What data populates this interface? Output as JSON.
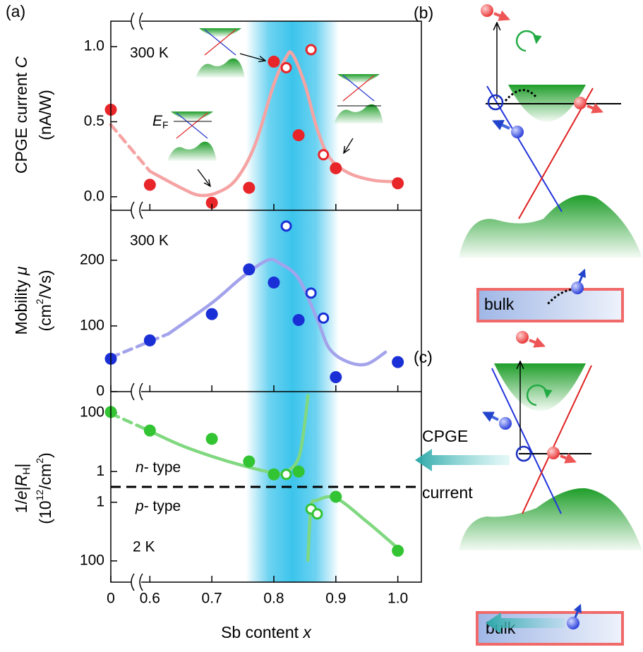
{
  "chart_data": {
    "type": "scatter",
    "panel_label": "(a)",
    "xlabel": [
      "Sb content ",
      "x"
    ],
    "xlim": [
      0.537,
      1.038
    ],
    "x_break": true,
    "xticks": [
      0,
      0.6,
      0.7,
      0.8,
      0.9,
      {
        "value": 1,
        "label": "1.0"
      }
    ],
    "highlight": {
      "range": [
        0.755,
        0.905
      ],
      "color": "#3cc4ec"
    },
    "panels": [
      {
        "ylabel": [
          "CPGE current ",
          "C"
        ],
        "yunit": [
          "(nA/W)"
        ],
        "annotation": "300 K",
        "ef_label": [
          "E",
          "F"
        ],
        "ylim": [
          -0.09,
          1.17
        ],
        "yticks": [
          {
            "value": 0,
            "label": "0.0"
          },
          {
            "value": 0.5,
            "label": "0.5"
          },
          {
            "value": 1,
            "label": "1.0"
          }
        ],
        "series": [
          {
            "marker": "filled",
            "color": "#e8262a",
            "x": [
              0,
              0.6,
              0.7,
              0.76,
              0.8,
              0.84,
              0.9,
              1.0
            ],
            "values": [
              0.58,
              0.08,
              -0.04,
              0.06,
              0.9,
              0.41,
              0.19,
              0.09
            ]
          },
          {
            "marker": "open",
            "color": "#e8262a",
            "x": [
              0.82,
              0.86,
              0.88
            ],
            "values": [
              0.86,
              0.98,
              0.28
            ]
          },
          {
            "line": "dashed",
            "color": "#f5a3a3",
            "x": [
              0,
              0.6
            ],
            "values": [
              0.48,
              0.17
            ]
          },
          {
            "line": "solid",
            "color": "#f5a3a3",
            "x": [
              0.6,
              0.65,
              0.68,
              0.71,
              0.74,
              0.77,
              0.8,
              0.82,
              0.83,
              0.85,
              0.87,
              0.89,
              0.92,
              0.96,
              1.0
            ],
            "values": [
              0.17,
              0.06,
              0.01,
              0.03,
              0.12,
              0.35,
              0.75,
              0.93,
              0.95,
              0.75,
              0.45,
              0.26,
              0.16,
              0.11,
              0.1
            ]
          }
        ]
      },
      {
        "ylabel": [
          "Mobility ",
          "μ"
        ],
        "yunit": [
          "(cm",
          "2",
          "/Vs)"
        ],
        "annotation": "300 K",
        "ylim": [
          0,
          276
        ],
        "yticks": [
          0,
          100,
          200
        ],
        "series": [
          {
            "marker": "filled",
            "color": "#1a30d6",
            "x": [
              0,
              0.6,
              0.7,
              0.76,
              0.8,
              0.84,
              0.9,
              1.0
            ],
            "values": [
              50,
              78,
              118,
              186,
              166,
              109,
              22,
              45
            ]
          },
          {
            "marker": "open",
            "color": "#1a30d6",
            "x": [
              0.82,
              0.86,
              0.88
            ],
            "values": [
              252,
              150,
              112
            ]
          },
          {
            "line": "dashed",
            "color": "#a3a3ec",
            "x": [
              0,
              0.63
            ],
            "values": [
              52,
              88
            ]
          },
          {
            "line": "solid",
            "color": "#a3a3ec",
            "x": [
              0.63,
              0.7,
              0.75,
              0.79,
              0.81,
              0.84,
              0.87,
              0.89,
              0.92,
              0.95,
              0.98
            ],
            "values": [
              88,
              135,
              175,
              200,
              195,
              172,
              110,
              65,
              45,
              42,
              60
            ]
          }
        ]
      },
      {
        "ylabel": [
          "1/",
          "e",
          "|",
          "R",
          "H",
          "|"
        ],
        "yunit": [
          "(10",
          "12",
          "/cm",
          "2",
          ")"
        ],
        "annotation": "2 K",
        "region_labels": [
          [
            "n",
            "- type"
          ],
          [
            "p",
            "- type"
          ]
        ],
        "yscale": "log",
        "split": true,
        "ylim": [
          0.3,
          530
        ],
        "yticks_n": [
          1,
          100
        ],
        "yticks_p": [
          1,
          100
        ],
        "series": [
          {
            "marker": "filled",
            "side": "n",
            "color": "#33c433",
            "x": [
              0,
              0.6,
              0.7,
              0.76,
              0.8,
              0.84
            ],
            "values": [
              107,
              25,
              13,
              2.2,
              0.8,
              1.0
            ]
          },
          {
            "marker": "open",
            "side": "n",
            "color": "#33c433",
            "x": [
              0.82
            ],
            "values": [
              0.8
            ]
          },
          {
            "marker": "open",
            "side": "p",
            "color": "#33c433",
            "x": [
              0.86,
              0.87
            ],
            "values": [
              1.7,
              2.5
            ]
          },
          {
            "marker": "filled",
            "side": "p",
            "color": "#33c433",
            "x": [
              0.9,
              1.0
            ],
            "values": [
              0.65,
              45
            ]
          },
          {
            "line": "dashed",
            "side": "n",
            "color": "#80d880",
            "x": [
              0,
              0.6
            ],
            "values": [
              95,
              24
            ]
          },
          {
            "line": "solid",
            "side": "n",
            "color": "#80d880",
            "x": [
              0.6,
              0.65,
              0.7,
              0.75,
              0.8,
              0.82,
              0.84,
              0.85,
              0.855
            ],
            "values": [
              24,
              7.9,
              3.3,
              1.6,
              0.9,
              0.96,
              2.9,
              47,
              390
            ]
          },
          {
            "line": "solid",
            "side": "p",
            "color": "#80d880",
            "x": [
              0.855,
              0.86,
              0.87,
              0.9,
              0.95,
              1.0
            ],
            "values": [
              96,
              1.5,
              0.86,
              0.72,
              4.6,
              37
            ]
          }
        ]
      }
    ]
  },
  "schematics": {
    "b": {
      "label": "(b)",
      "bulk": "bulk"
    },
    "c": {
      "label": "(c)",
      "arrow_text": [
        "CPGE",
        "current"
      ],
      "bulk": "bulk"
    }
  }
}
